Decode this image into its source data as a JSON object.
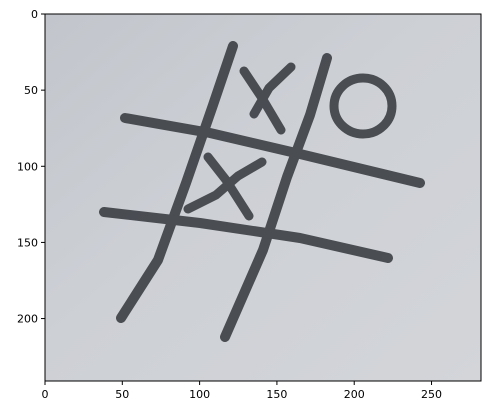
{
  "figure": {
    "background": "#ffffff",
    "axes_color": "#000000"
  },
  "image": {
    "paper_color": "#c9ccd1",
    "paper_shade": "#b8bcc2",
    "ink_color": "#3f4247",
    "cells": [
      {
        "row": 0,
        "col": 1,
        "mark": "X"
      },
      {
        "row": 0,
        "col": 2,
        "mark": "O"
      },
      {
        "row": 1,
        "col": 1,
        "mark": "X"
      }
    ]
  },
  "axes": {
    "xlim": [
      0,
      282
    ],
    "ylim": [
      241,
      0
    ],
    "xticks": [
      0,
      50,
      100,
      150,
      200,
      250
    ],
    "yticks": [
      0,
      50,
      100,
      150,
      200
    ],
    "xtick_labels": [
      "0",
      "50",
      "100",
      "150",
      "200",
      "250"
    ],
    "ytick_labels": [
      "0",
      "50",
      "100",
      "150",
      "200"
    ]
  }
}
